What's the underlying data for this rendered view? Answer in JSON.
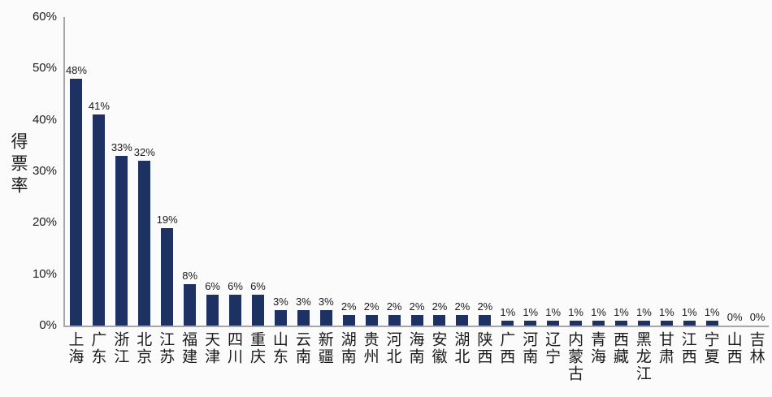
{
  "chart_data": {
    "type": "bar",
    "title": "",
    "xlabel": "",
    "ylabel": "得票率",
    "categories": [
      "上海",
      "广东",
      "浙江",
      "北京",
      "江苏",
      "福建",
      "天津",
      "四川",
      "重庆",
      "山东",
      "云南",
      "新疆",
      "湖南",
      "贵州",
      "河北",
      "海南",
      "安徽",
      "湖北",
      "陕西",
      "广西",
      "河南",
      "辽宁",
      "内蒙古",
      "青海",
      "西藏",
      "黑龙江",
      "甘肃",
      "江西",
      "宁夏",
      "山西",
      "吉林"
    ],
    "values": [
      48,
      41,
      33,
      32,
      19,
      8,
      6,
      6,
      6,
      3,
      3,
      3,
      2,
      2,
      2,
      2,
      2,
      2,
      2,
      1,
      1,
      1,
      1,
      1,
      1,
      1,
      1,
      1,
      1,
      0,
      0
    ],
    "data_labels": [
      "48%",
      "41%",
      "33%",
      "32%",
      "19%",
      "8%",
      "6%",
      "6%",
      "6%",
      "3%",
      "3%",
      "3%",
      "2%",
      "2%",
      "2%",
      "2%",
      "2%",
      "2%",
      "2%",
      "1%",
      "1%",
      "1%",
      "1%",
      "1%",
      "1%",
      "1%",
      "1%",
      "1%",
      "1%",
      "0%",
      "0%"
    ],
    "ylim": [
      0,
      60
    ],
    "yticks": [
      {
        "value": 0,
        "label": "0%"
      },
      {
        "value": 10,
        "label": "10%"
      },
      {
        "value": 20,
        "label": "20%"
      },
      {
        "value": 30,
        "label": "30%"
      },
      {
        "value": 40,
        "label": "40%"
      },
      {
        "value": 50,
        "label": "50%"
      },
      {
        "value": 60,
        "label": "60%"
      }
    ],
    "grid": false,
    "legend": null,
    "colors": {
      "bar": "#1E3163",
      "axis": "#A6A6A6",
      "text": "#1a1a1a",
      "background": "#FBFBFB"
    }
  }
}
